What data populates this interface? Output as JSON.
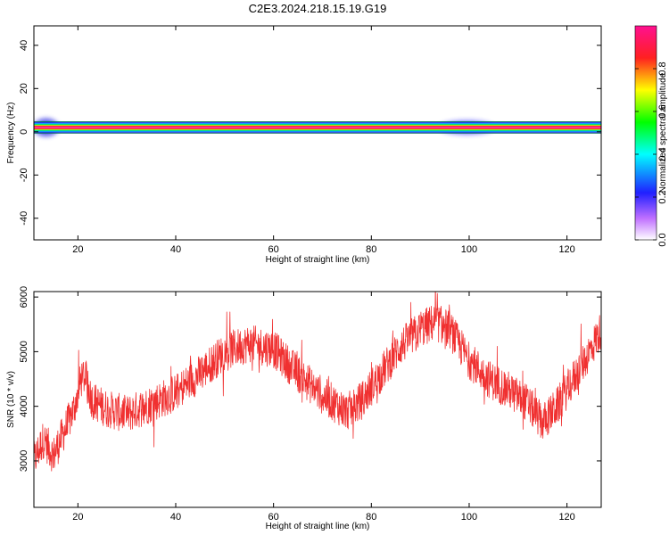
{
  "figure": {
    "title": "C2E3.2024.218.15.19.G19"
  },
  "chart_data": [
    {
      "type": "heatmap",
      "xlabel": "Height of straight line (km)",
      "ylabel": "Frequency (Hz)",
      "xlim": [
        11,
        127
      ],
      "ylim": [
        -50,
        49
      ],
      "x_ticks": [
        20,
        40,
        60,
        80,
        100,
        120
      ],
      "y_ticks": [
        -40,
        -20,
        0,
        20,
        40
      ],
      "grid": false,
      "ridge_frequency_hz": 2,
      "colorbar": {
        "label": "Normalized spectral amplitude",
        "range": [
          0,
          1
        ],
        "ticks": [
          0.0,
          0.2,
          0.4,
          0.6,
          0.8
        ],
        "tick_labels": [
          "0.0",
          "0.2",
          "0.4",
          "0.6",
          "0.8"
        ],
        "colormap": "rainbow (white-magenta-blue-cyan-green-yellow-red-pink)"
      },
      "features": [
        {
          "x": [
            11,
            127
          ],
          "frequency": 2,
          "amplitude": 1.0
        },
        {
          "x": [
            11,
            16
          ],
          "frequency": [
            -2,
            6
          ],
          "amplitude": 0.4
        },
        {
          "x": [
            94,
            105
          ],
          "frequency": [
            -1,
            5
          ],
          "amplitude": 0.25
        }
      ]
    },
    {
      "type": "line",
      "xlabel": "Height of straight line (km)",
      "ylabel": "SNR (10 * v/v)",
      "xlim": [
        11,
        127
      ],
      "ylim": [
        2150,
        6100
      ],
      "x_ticks": [
        20,
        40,
        60,
        80,
        100,
        120
      ],
      "y_ticks": [
        3000,
        4000,
        5000,
        6000
      ],
      "grid": false,
      "line_color": "#f03030",
      "series_trend": {
        "x": [
          11,
          13,
          15,
          17,
          19,
          21,
          23,
          26,
          30,
          35,
          40,
          45,
          50,
          55,
          60,
          65,
          70,
          75,
          78,
          82,
          86,
          90,
          93,
          96,
          100,
          104,
          108,
          112,
          115,
          118,
          121,
          124,
          127
        ],
        "y": [
          3000,
          3400,
          3100,
          3500,
          3900,
          4600,
          4100,
          3950,
          3850,
          4050,
          4250,
          4600,
          5000,
          5150,
          5050,
          4600,
          4200,
          3900,
          4100,
          4600,
          5100,
          5400,
          5550,
          5400,
          4850,
          4500,
          4300,
          4050,
          3700,
          4000,
          4450,
          4900,
          5400
        ]
      },
      "noise_amplitude": 350
    }
  ]
}
